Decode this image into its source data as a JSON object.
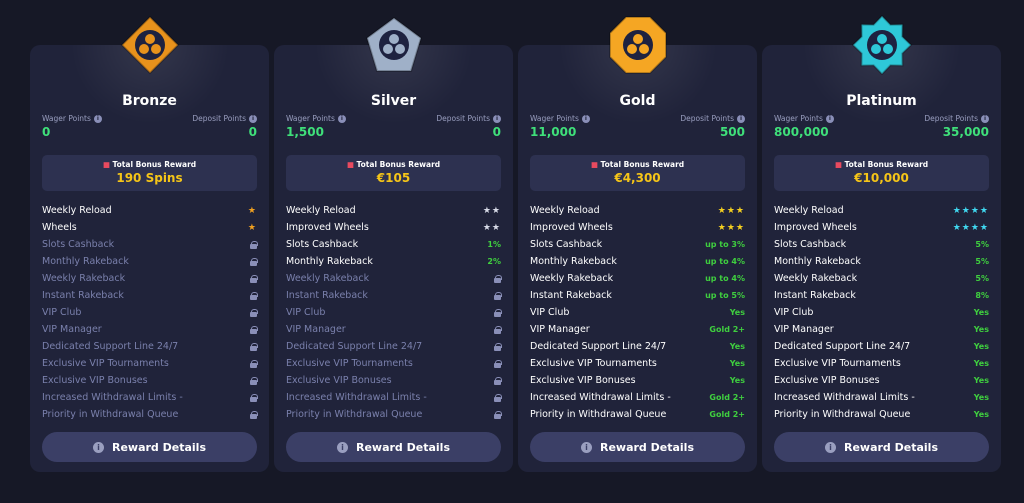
{
  "labels": {
    "wager": "Wager Points",
    "deposit": "Deposit Points",
    "bonus": "Total Bonus Reward",
    "details": "Reward Details",
    "info": "i"
  },
  "features": [
    "Weekly Reload",
    "Wheels",
    "Slots Cashback",
    "Monthly Rakeback",
    "Weekly Rakeback",
    "Instant Rakeback",
    "VIP Club",
    "VIP Manager",
    "Dedicated Support Line 24/7",
    "Exclusive VIP Tournaments",
    "Exclusive VIP Bonuses",
    "Increased Withdrawal Limits -",
    "Priority in Withdrawal Queue"
  ],
  "tiers": [
    {
      "name": "Bronze",
      "wager": "0",
      "deposit": "0",
      "bonus": "190 Spins",
      "color": "#e8921c",
      "star_color": "#f0a020",
      "rows": [
        {
          "label": "Weekly Reload",
          "stars": 1
        },
        {
          "label": "Wheels",
          "stars": 1
        },
        {
          "label": "Slots Cashback",
          "locked": true
        },
        {
          "label": "Monthly Rakeback",
          "locked": true
        },
        {
          "label": "Weekly Rakeback",
          "locked": true
        },
        {
          "label": "Instant Rakeback",
          "locked": true
        },
        {
          "label": "VIP Club",
          "locked": true
        },
        {
          "label": "VIP Manager",
          "locked": true
        },
        {
          "label": "Dedicated Support Line 24/7",
          "locked": true
        },
        {
          "label": "Exclusive VIP Tournaments",
          "locked": true
        },
        {
          "label": "Exclusive VIP Bonuses",
          "locked": true
        },
        {
          "label": "Increased Withdrawal Limits -",
          "locked": true
        },
        {
          "label": "Priority in Withdrawal Queue",
          "locked": true
        }
      ]
    },
    {
      "name": "Silver",
      "wager": "1,500",
      "deposit": "0",
      "bonus": "€105",
      "color": "#9fb0c8",
      "star_color": "#d8dbe8",
      "rows": [
        {
          "label": "Weekly Reload",
          "stars": 2
        },
        {
          "label": "Improved Wheels",
          "stars": 2
        },
        {
          "label": "Slots Cashback",
          "value": "1%"
        },
        {
          "label": "Monthly Rakeback",
          "value": "2%"
        },
        {
          "label": "Weekly Rakeback",
          "locked": true
        },
        {
          "label": "Instant Rakeback",
          "locked": true
        },
        {
          "label": "VIP Club",
          "locked": true
        },
        {
          "label": "VIP Manager",
          "locked": true
        },
        {
          "label": "Dedicated Support Line 24/7",
          "locked": true
        },
        {
          "label": "Exclusive VIP Tournaments",
          "locked": true
        },
        {
          "label": "Exclusive VIP Bonuses",
          "locked": true
        },
        {
          "label": "Increased Withdrawal Limits -",
          "locked": true
        },
        {
          "label": "Priority in Withdrawal Queue",
          "locked": true
        }
      ]
    },
    {
      "name": "Gold",
      "wager": "11,000",
      "deposit": "500",
      "bonus": "€4,300",
      "color": "#f5a623",
      "star_color": "#f5d020",
      "rows": [
        {
          "label": "Weekly Reload",
          "stars": 3
        },
        {
          "label": "Improved Wheels",
          "stars": 3
        },
        {
          "label": "Slots Cashback",
          "value": "up to 3%"
        },
        {
          "label": "Monthly Rakeback",
          "value": "up to 4%"
        },
        {
          "label": "Weekly Rakeback",
          "value": "up to 4%"
        },
        {
          "label": "Instant Rakeback",
          "value": "up to 5%"
        },
        {
          "label": "VIP Club",
          "value": "Yes"
        },
        {
          "label": "VIP Manager",
          "value": "Gold 2+"
        },
        {
          "label": "Dedicated Support Line 24/7",
          "value": "Yes"
        },
        {
          "label": "Exclusive VIP Tournaments",
          "value": "Yes"
        },
        {
          "label": "Exclusive VIP Bonuses",
          "value": "Yes"
        },
        {
          "label": "Increased Withdrawal Limits -",
          "value": "Gold 2+"
        },
        {
          "label": "Priority in Withdrawal Queue",
          "value": "Gold 2+"
        }
      ]
    },
    {
      "name": "Platinum",
      "wager": "800,000",
      "deposit": "35,000",
      "bonus": "€10,000",
      "color": "#2ec8d8",
      "star_color": "#40d8f0",
      "rows": [
        {
          "label": "Weekly Reload",
          "stars": 4
        },
        {
          "label": "Improved Wheels",
          "stars": 4
        },
        {
          "label": "Slots Cashback",
          "value": "5%"
        },
        {
          "label": "Monthly Rakeback",
          "value": "5%"
        },
        {
          "label": "Weekly Rakeback",
          "value": "5%"
        },
        {
          "label": "Instant Rakeback",
          "value": "8%"
        },
        {
          "label": "VIP Club",
          "value": "Yes"
        },
        {
          "label": "VIP Manager",
          "value": "Yes"
        },
        {
          "label": "Dedicated Support Line 24/7",
          "value": "Yes"
        },
        {
          "label": "Exclusive VIP Tournaments",
          "value": "Yes"
        },
        {
          "label": "Exclusive VIP Bonuses",
          "value": "Yes"
        },
        {
          "label": "Increased Withdrawal Limits -",
          "value": "Yes"
        },
        {
          "label": "Priority in Withdrawal Queue",
          "value": "Yes"
        }
      ]
    }
  ]
}
